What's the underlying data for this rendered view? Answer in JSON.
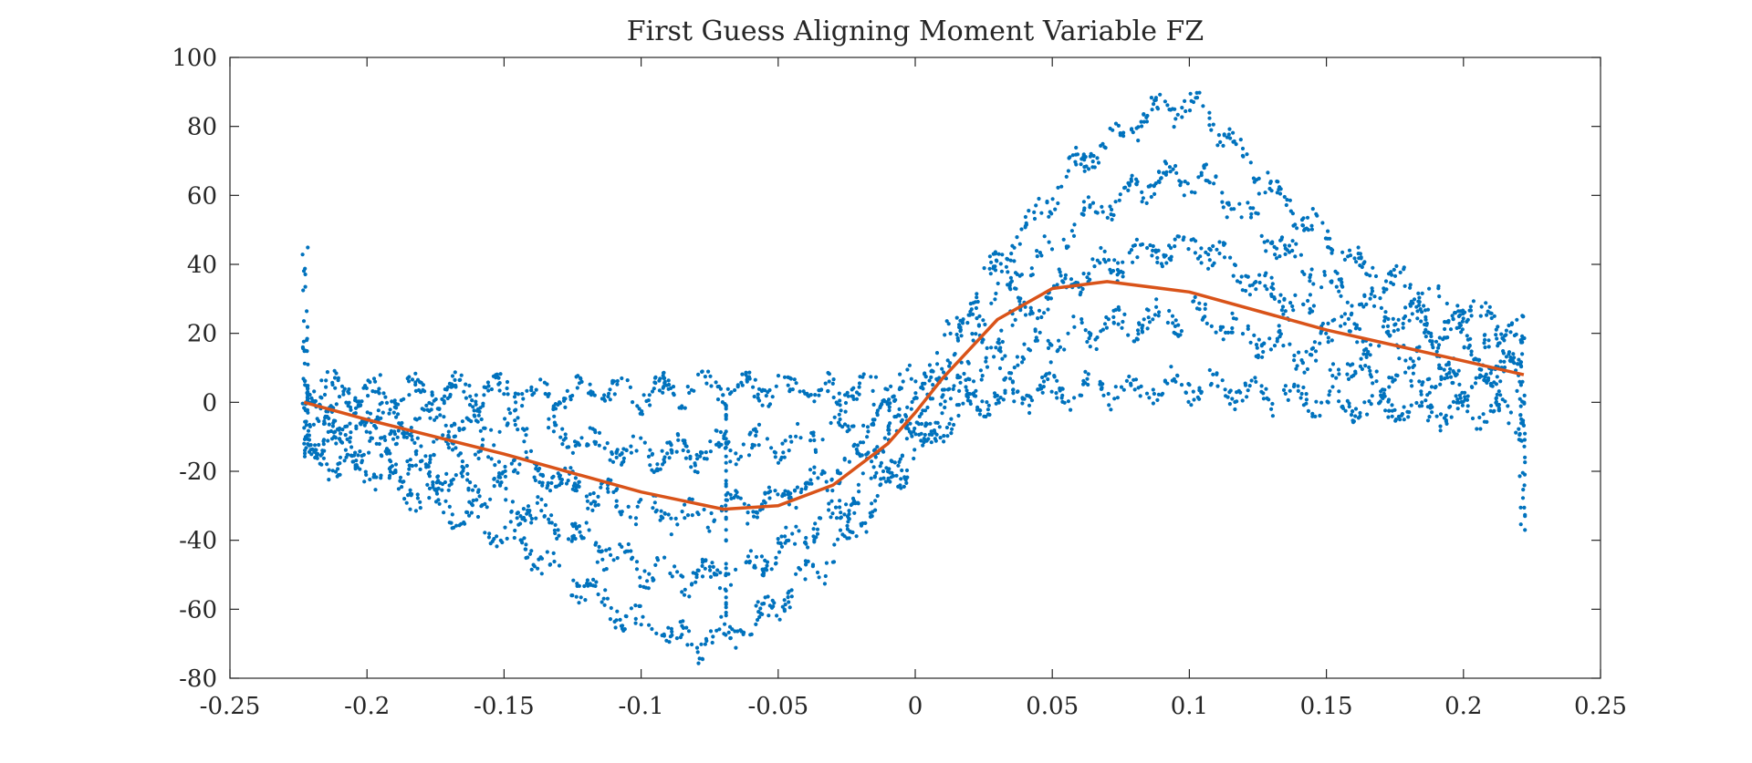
{
  "chart_data": {
    "type": "scatter",
    "title": "First Guess Aligning Moment Variable FZ",
    "xlabel": "",
    "ylabel": "",
    "xlim": [
      -0.25,
      0.25
    ],
    "ylim": [
      -80,
      100
    ],
    "xticks": [
      -0.25,
      -0.2,
      -0.15,
      -0.1,
      -0.05,
      0,
      0.05,
      0.1,
      0.15,
      0.2,
      0.25
    ],
    "xtick_labels": [
      "-0.25",
      "-0.2",
      "-0.15",
      "-0.1",
      "-0.05",
      "0",
      "0.05",
      "0.1",
      "0.15",
      "0.2",
      "0.25"
    ],
    "yticks": [
      -80,
      -60,
      -40,
      -20,
      0,
      20,
      40,
      60,
      80,
      100
    ],
    "ytick_labels": [
      "-80",
      "-60",
      "-40",
      "-20",
      "0",
      "20",
      "40",
      "60",
      "80",
      "100"
    ],
    "grid": false,
    "legend": "none",
    "series": [
      {
        "kind": "scatter",
        "color": "#0072BD",
        "x_range": [
          -0.223,
          0.222
        ],
        "note_points": "dense cloud of measured points between two envelopes",
        "upper_envelope": {
          "x": [
            -0.223,
            -0.2,
            -0.15,
            -0.1,
            -0.07,
            -0.03,
            0,
            0.03,
            0.06,
            0.09,
            0.105,
            0.13,
            0.16,
            0.19,
            0.222
          ],
          "y": [
            5,
            3,
            3,
            2,
            5,
            3,
            5,
            40,
            70,
            85,
            85,
            62,
            40,
            30,
            20
          ]
        },
        "lower_envelope": {
          "x": [
            -0.223,
            -0.2,
            -0.15,
            -0.1,
            -0.08,
            -0.06,
            -0.03,
            0,
            0.02,
            0.05,
            0.1,
            0.15,
            0.2,
            0.222
          ],
          "y": [
            -15,
            -20,
            -38,
            -65,
            -70,
            -65,
            -45,
            -15,
            0,
            3,
            5,
            0,
            -3,
            -5
          ]
        }
      },
      {
        "kind": "line",
        "color": "#D95319",
        "x": [
          -0.223,
          -0.2,
          -0.15,
          -0.1,
          -0.07,
          -0.05,
          -0.03,
          -0.01,
          0,
          0.01,
          0.03,
          0.05,
          0.07,
          0.1,
          0.15,
          0.2,
          0.222
        ],
        "y": [
          0,
          -5,
          -15,
          -26,
          -31,
          -30,
          -24,
          -12,
          -3,
          7,
          24,
          33,
          35,
          32,
          21,
          12,
          8
        ]
      }
    ]
  }
}
